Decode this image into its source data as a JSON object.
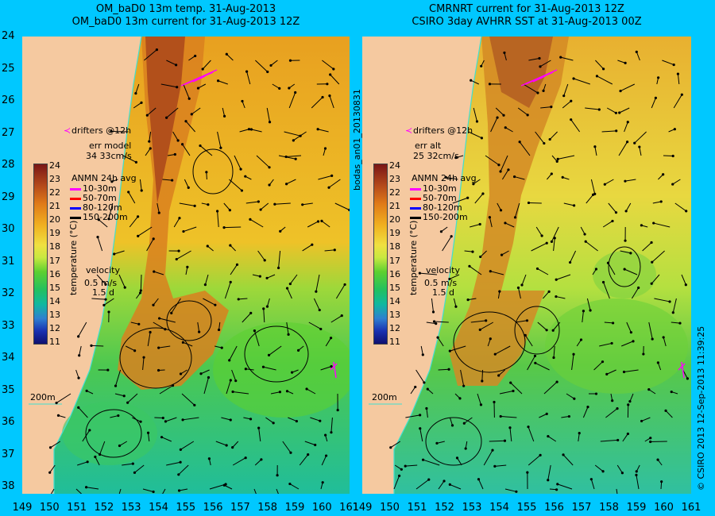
{
  "left_title": {
    "line1": "OM_baD0 13m temp. 31-Aug-2013",
    "line2": "OM_baD0 13m current for 31-Aug-2013 12Z"
  },
  "right_title": {
    "line1": "CMRNRT current for 31-Aug-2013 12Z",
    "line2": "CSIRO 3day AVHRR SST at 31-Aug-2013 00Z"
  },
  "y_ticks": [
    "24",
    "25",
    "26",
    "27",
    "28",
    "29",
    "30",
    "31",
    "32",
    "33",
    "34",
    "35",
    "36",
    "37",
    "38"
  ],
  "x_ticks": [
    "149",
    "150",
    "151",
    "152",
    "153",
    "154",
    "155",
    "156",
    "157",
    "158",
    "159",
    "160",
    "161"
  ],
  "colorbar": {
    "ticks": [
      "24",
      "23",
      "22",
      "21",
      "20",
      "19",
      "18",
      "17",
      "16",
      "15",
      "14",
      "13",
      "12",
      "11"
    ],
    "title": "temperature (°C)"
  },
  "left_legend": {
    "drifters": "drifters @12h",
    "err_label": "err model",
    "err_value": "34 33cm/s",
    "anmn_title": "ANMN 24h avg",
    "depths": [
      {
        "label": "10-30m",
        "color": "#ff00ff"
      },
      {
        "label": "50-70m",
        "color": "#ff0000"
      },
      {
        "label": "80-120m",
        "color": "#0000ff"
      },
      {
        "label": "150-200m",
        "color": "#000000"
      }
    ],
    "velocity": "velocity",
    "vel_scale": "0.5 m/s",
    "vel_time": "1.5 d",
    "isobath": "200m"
  },
  "right_legend": {
    "drifters": "drifters @12h",
    "err_label": "err alt",
    "err_value": "25 32cm/s",
    "anmn_title": "ANMN 24h avg",
    "depths": [
      {
        "label": "10-30m",
        "color": "#ff00ff"
      },
      {
        "label": "50-70m",
        "color": "#ff0000"
      },
      {
        "label": "80-120m",
        "color": "#0000ff"
      },
      {
        "label": "150-200m",
        "color": "#000000"
      }
    ],
    "velocity": "velocity",
    "vel_scale": "0.5 m/s",
    "vel_time": "1.5 d",
    "isobath": "200m"
  },
  "side_label_middle": "bodas_an01_20130831",
  "side_label_right": "© CSIRO 2013    12-Sep-2013 11:39:25",
  "colors": {
    "background": "#00c8ff",
    "land": "#f5c9a0",
    "coast": "#40e0d0",
    "drifter": "#ff00ff"
  }
}
